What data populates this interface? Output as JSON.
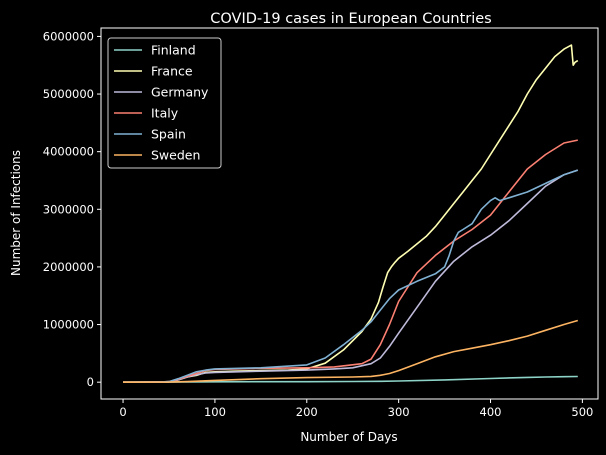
{
  "chart_data": {
    "type": "line",
    "title": "COVID-19 cases in European Countries",
    "xlabel": "Number of Days",
    "ylabel": "Number of Infections",
    "xlim": [
      -24,
      517
    ],
    "ylim": [
      -292000,
      6146000
    ],
    "xticks": [
      0,
      100,
      200,
      300,
      400,
      500
    ],
    "xtick_labels": [
      "0",
      "100",
      "200",
      "300",
      "400",
      "500"
    ],
    "yticks": [
      0,
      1000000,
      2000000,
      3000000,
      4000000,
      5000000,
      6000000
    ],
    "ytick_labels": [
      "0",
      "1000000",
      "2000000",
      "3000000",
      "4000000",
      "5000000",
      "6000000"
    ],
    "grid": false,
    "legend_position": "upper-left",
    "series": [
      {
        "name": "Finland",
        "color": "#8dd3c7",
        "x": [
          0,
          50,
          100,
          150,
          200,
          250,
          280,
          300,
          350,
          400,
          440,
          460,
          480,
          495
        ],
        "y": [
          0,
          1000,
          7000,
          8000,
          9000,
          12000,
          16000,
          20000,
          40000,
          63000,
          82000,
          90000,
          95000,
          98000
        ]
      },
      {
        "name": "France",
        "color": "#ffffb3",
        "x": [
          0,
          50,
          60,
          70,
          80,
          90,
          100,
          120,
          150,
          180,
          200,
          220,
          240,
          260,
          270,
          278,
          283,
          288,
          292,
          296,
          300,
          310,
          320,
          330,
          340,
          350,
          360,
          370,
          380,
          390,
          400,
          410,
          420,
          430,
          440,
          450,
          460,
          470,
          480,
          488,
          490,
          492,
          495
        ],
        "y": [
          0,
          5000,
          40000,
          90000,
          120000,
          170000,
          180000,
          190000,
          200000,
          210000,
          230000,
          330000,
          560000,
          880000,
          1100000,
          1380000,
          1650000,
          1900000,
          2000000,
          2080000,
          2150000,
          2270000,
          2400000,
          2530000,
          2700000,
          2900000,
          3100000,
          3300000,
          3500000,
          3700000,
          3950000,
          4200000,
          4450000,
          4700000,
          5000000,
          5250000,
          5450000,
          5650000,
          5780000,
          5850000,
          5500000,
          5550000,
          5580000
        ]
      },
      {
        "name": "Germany",
        "color": "#bebada",
        "x": [
          0,
          50,
          60,
          70,
          80,
          90,
          100,
          150,
          200,
          230,
          250,
          270,
          280,
          290,
          300,
          320,
          340,
          360,
          380,
          400,
          420,
          440,
          460,
          480,
          495
        ],
        "y": [
          0,
          5000,
          40000,
          90000,
          130000,
          160000,
          170000,
          190000,
          210000,
          230000,
          250000,
          320000,
          420000,
          620000,
          850000,
          1300000,
          1750000,
          2100000,
          2350000,
          2550000,
          2800000,
          3100000,
          3400000,
          3600000,
          3680000
        ]
      },
      {
        "name": "Italy",
        "color": "#fb8072",
        "x": [
          0,
          40,
          50,
          60,
          70,
          80,
          90,
          100,
          150,
          200,
          230,
          260,
          270,
          280,
          290,
          300,
          320,
          340,
          360,
          380,
          400,
          420,
          440,
          460,
          480,
          495
        ],
        "y": [
          0,
          1000,
          10000,
          50000,
          100000,
          150000,
          200000,
          220000,
          240000,
          250000,
          265000,
          320000,
          400000,
          650000,
          1000000,
          1400000,
          1900000,
          2200000,
          2450000,
          2650000,
          2900000,
          3300000,
          3700000,
          3950000,
          4150000,
          4200000
        ]
      },
      {
        "name": "Spain",
        "color": "#80b1d3",
        "x": [
          0,
          40,
          50,
          60,
          70,
          80,
          90,
          100,
          150,
          200,
          220,
          240,
          260,
          270,
          280,
          290,
          300,
          320,
          340,
          350,
          355,
          360,
          365,
          370,
          380,
          390,
          400,
          405,
          410,
          420,
          440,
          460,
          480,
          495
        ],
        "y": [
          0,
          1000,
          10000,
          60000,
          120000,
          180000,
          210000,
          230000,
          250000,
          300000,
          420000,
          650000,
          900000,
          1050000,
          1250000,
          1450000,
          1600000,
          1750000,
          1880000,
          2000000,
          2200000,
          2450000,
          2600000,
          2650000,
          2750000,
          3000000,
          3150000,
          3200000,
          3150000,
          3200000,
          3300000,
          3450000,
          3600000,
          3680000
        ]
      },
      {
        "name": "Sweden",
        "color": "#fdb462",
        "x": [
          0,
          50,
          70,
          100,
          150,
          200,
          250,
          270,
          280,
          290,
          300,
          320,
          340,
          360,
          380,
          400,
          420,
          440,
          460,
          480,
          495
        ],
        "y": [
          0,
          1000,
          10000,
          30000,
          60000,
          80000,
          90000,
          100000,
          120000,
          150000,
          200000,
          320000,
          440000,
          530000,
          590000,
          650000,
          720000,
          800000,
          900000,
          1000000,
          1070000
        ]
      }
    ]
  }
}
